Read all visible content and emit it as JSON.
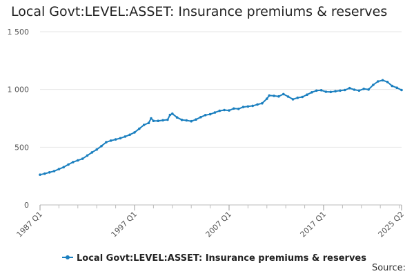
{
  "chart_data": {
    "type": "line",
    "title": "Local Govt:LEVEL:ASSET: Insurance premiums & reserves",
    "xlabel": "",
    "ylabel": "",
    "ylim": [
      0,
      1500
    ],
    "yticks": [
      {
        "value": 0,
        "label": "0"
      },
      {
        "value": 500,
        "label": "500"
      },
      {
        "value": 1000,
        "label": "1 000"
      },
      {
        "value": 1500,
        "label": "1 500"
      }
    ],
    "xticks": [
      "1987 Q1",
      "1997 Q1",
      "2007 Q1",
      "2017 Q1",
      "2025 Q2"
    ],
    "x_range": [
      "1987 Q1",
      "2025 Q2"
    ],
    "grid": "horizontal",
    "legend_position": "bottom-center",
    "series": [
      {
        "name": "Local Govt:LEVEL:ASSET: Insurance premiums & reserves",
        "color": "#1a7fbf",
        "points": [
          [
            "1987 Q1",
            262
          ],
          [
            "1987 Q3",
            271
          ],
          [
            "1988 Q1",
            282
          ],
          [
            "1988 Q3",
            293
          ],
          [
            "1989 Q1",
            310
          ],
          [
            "1989 Q3",
            327
          ],
          [
            "1990 Q1",
            350
          ],
          [
            "1990 Q3",
            371
          ],
          [
            "1991 Q1",
            386
          ],
          [
            "1991 Q3",
            400
          ],
          [
            "1992 Q1",
            428
          ],
          [
            "1992 Q3",
            455
          ],
          [
            "1993 Q1",
            480
          ],
          [
            "1993 Q3",
            510
          ],
          [
            "1994 Q1",
            543
          ],
          [
            "1994 Q3",
            557
          ],
          [
            "1995 Q1",
            567
          ],
          [
            "1995 Q3",
            578
          ],
          [
            "1996 Q1",
            592
          ],
          [
            "1996 Q3",
            608
          ],
          [
            "1997 Q1",
            628
          ],
          [
            "1997 Q3",
            660
          ],
          [
            "1998 Q1",
            693
          ],
          [
            "1998 Q3",
            710
          ],
          [
            "1998 Q4",
            750
          ],
          [
            "1999 Q1",
            728
          ],
          [
            "1999 Q3",
            728
          ],
          [
            "2000 Q1",
            733
          ],
          [
            "2000 Q3",
            738
          ],
          [
            "2000 Q4",
            780
          ],
          [
            "2001 Q1",
            790
          ],
          [
            "2001 Q3",
            758
          ],
          [
            "2002 Q1",
            737
          ],
          [
            "2002 Q3",
            732
          ],
          [
            "2003 Q1",
            725
          ],
          [
            "2003 Q3",
            740
          ],
          [
            "2004 Q1",
            760
          ],
          [
            "2004 Q3",
            778
          ],
          [
            "2005 Q1",
            785
          ],
          [
            "2005 Q3",
            800
          ],
          [
            "2006 Q1",
            815
          ],
          [
            "2006 Q3",
            822
          ],
          [
            "2007 Q1",
            818
          ],
          [
            "2007 Q3",
            835
          ],
          [
            "2008 Q1",
            832
          ],
          [
            "2008 Q3",
            848
          ],
          [
            "2009 Q1",
            853
          ],
          [
            "2009 Q3",
            858
          ],
          [
            "2010 Q1",
            870
          ],
          [
            "2010 Q3",
            880
          ],
          [
            "2011 Q1",
            920
          ],
          [
            "2011 Q2",
            948
          ],
          [
            "2011 Q4",
            945
          ],
          [
            "2012 Q2",
            940
          ],
          [
            "2012 Q4",
            960
          ],
          [
            "2013 Q2",
            938
          ],
          [
            "2013 Q4",
            915
          ],
          [
            "2014 Q2",
            928
          ],
          [
            "2014 Q4",
            935
          ],
          [
            "2015 Q2",
            955
          ],
          [
            "2015 Q4",
            975
          ],
          [
            "2016 Q2",
            990
          ],
          [
            "2016 Q4",
            993
          ],
          [
            "2017 Q2",
            980
          ],
          [
            "2017 Q4",
            978
          ],
          [
            "2018 Q2",
            985
          ],
          [
            "2018 Q4",
            990
          ],
          [
            "2019 Q2",
            995
          ],
          [
            "2019 Q4",
            1012
          ],
          [
            "2020 Q2",
            998
          ],
          [
            "2020 Q4",
            990
          ],
          [
            "2021 Q2",
            1005
          ],
          [
            "2021 Q4",
            1000
          ],
          [
            "2022 Q2",
            1040
          ],
          [
            "2022 Q4",
            1070
          ],
          [
            "2023 Q2",
            1080
          ],
          [
            "2023 Q4",
            1065
          ],
          [
            "2024 Q2",
            1030
          ],
          [
            "2024 Q4",
            1015
          ],
          [
            "2025 Q2",
            995
          ]
        ]
      }
    ]
  },
  "legend": {
    "label": "Local Govt:LEVEL:ASSET: Insurance premiums & reserves"
  },
  "source_label": "Source:"
}
